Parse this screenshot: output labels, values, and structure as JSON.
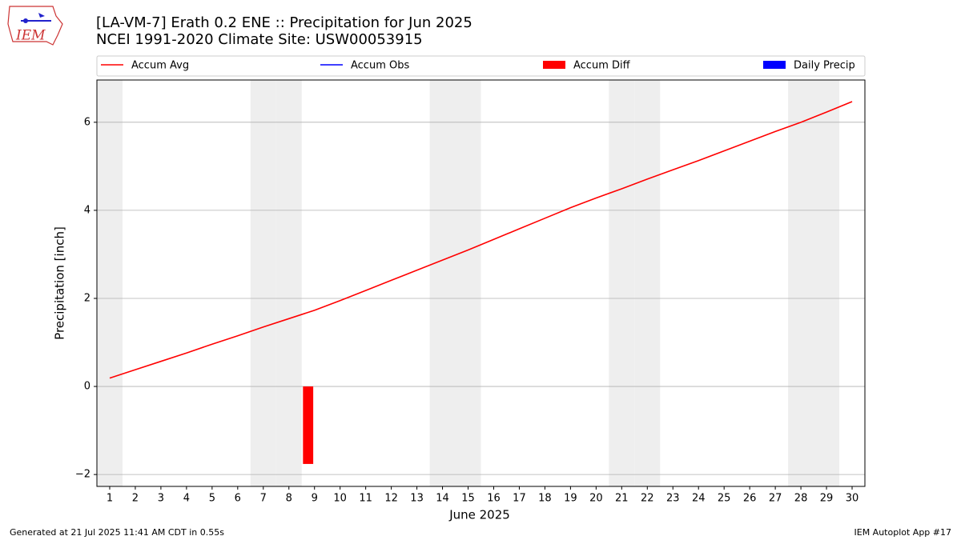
{
  "chart_data": {
    "type": "line",
    "title": "[LA-VM-7] Erath 0.2 ENE :: Precipitation for Jun 2025",
    "subtitle": "NCEI 1991-2020 Climate Site: USW00053915",
    "ylabel": "Precipitation [inch]",
    "xlabel": "June 2025",
    "logo_text": "IEM",
    "footer_left": "Generated at 21 Jul 2025 11:41 AM CDT in 0.55s",
    "footer_right": "IEM Autoplot App #17",
    "x": [
      1,
      2,
      3,
      4,
      5,
      6,
      7,
      8,
      9,
      10,
      11,
      12,
      13,
      14,
      15,
      16,
      17,
      18,
      19,
      20,
      21,
      22,
      23,
      24,
      25,
      26,
      27,
      28,
      29,
      30
    ],
    "xlim": [
      0.5,
      30.5
    ],
    "xticks": [
      1,
      2,
      3,
      4,
      5,
      6,
      7,
      8,
      9,
      10,
      11,
      12,
      13,
      14,
      15,
      16,
      17,
      18,
      19,
      20,
      21,
      22,
      23,
      24,
      25,
      26,
      27,
      28,
      29,
      30
    ],
    "ylim": [
      -2.27,
      6.96
    ],
    "yticks": [
      {
        "value": -2,
        "label": "−2"
      },
      0,
      2,
      4,
      6
    ],
    "grid": true,
    "shaded_days": [
      1,
      7,
      8,
      14,
      15,
      21,
      22,
      28,
      29
    ],
    "shade_color": "#eeeeee",
    "series": [
      {
        "name": "Accum Avg",
        "type": "line",
        "color": "#ff0000",
        "values": [
          0.19,
          0.38,
          0.57,
          0.76,
          0.96,
          1.15,
          1.35,
          1.54,
          1.73,
          1.95,
          2.18,
          2.41,
          2.64,
          2.87,
          3.1,
          3.34,
          3.58,
          3.82,
          4.06,
          4.28,
          4.49,
          4.71,
          4.92,
          5.13,
          5.35,
          5.57,
          5.79,
          6.0,
          6.23,
          6.47
        ]
      },
      {
        "name": "Accum Obs",
        "type": "line",
        "color": "#0000ff",
        "values": [
          null,
          null,
          null,
          null,
          null,
          null,
          null,
          null,
          null,
          null,
          null,
          null,
          null,
          null,
          null,
          null,
          null,
          null,
          null,
          null,
          null,
          null,
          null,
          null,
          null,
          null,
          null,
          null,
          null,
          null
        ]
      },
      {
        "name": "Accum Diff",
        "type": "bar",
        "color": "#ff0000",
        "values": [
          null,
          null,
          null,
          null,
          null,
          null,
          null,
          null,
          -1.76,
          null,
          null,
          null,
          null,
          null,
          null,
          null,
          null,
          null,
          null,
          null,
          null,
          null,
          null,
          null,
          null,
          null,
          null,
          null,
          null,
          null
        ]
      },
      {
        "name": "Daily Precip",
        "type": "bar",
        "color": "#0000ff",
        "values": [
          null,
          null,
          null,
          null,
          null,
          null,
          null,
          null,
          null,
          null,
          null,
          null,
          null,
          null,
          null,
          null,
          null,
          null,
          null,
          null,
          null,
          null,
          null,
          null,
          null,
          null,
          null,
          null,
          null,
          null
        ]
      }
    ]
  }
}
